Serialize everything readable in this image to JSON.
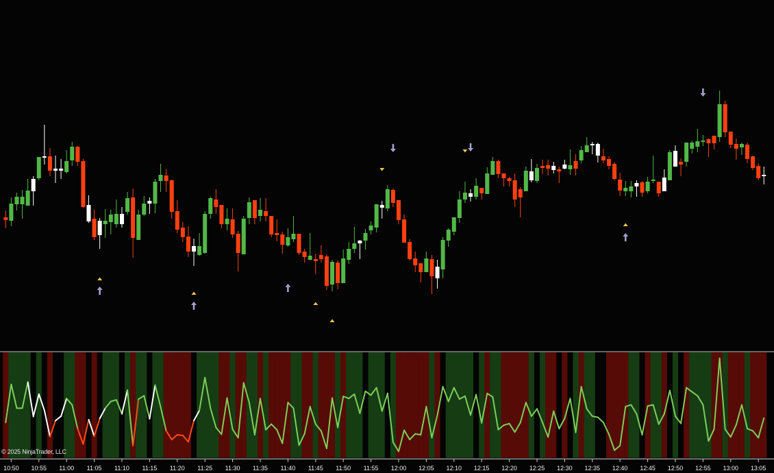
{
  "copyright": "© 2025 NinjaTrader, LLC",
  "colors": {
    "background": "#040404",
    "candle_up": "#52b848",
    "candle_down": "#ff4010",
    "candle_neutral": "#ffffff",
    "band_green": "#163c14",
    "band_red": "#560b06",
    "band_black": "#040404",
    "line_green": "#7ccf5a",
    "line_red": "#ff4a1a",
    "line_white": "#ffffff",
    "signal_triangle": "#f0c050",
    "signal_arrow": "#a0a0cc",
    "axis": "#d0d0d0"
  },
  "chart_data": [
    {
      "type": "candlestick",
      "title": "",
      "price_axis_labels": "none shown",
      "x_tick_labels": [
        "10:50",
        "10:55",
        "11:00",
        "11:05",
        "11:10",
        "11:15",
        "11:20",
        "11:25",
        "11:30",
        "11:35",
        "11:40",
        "11:45",
        "11:50",
        "11:55",
        "12:00",
        "12:05",
        "12:10",
        "12:15",
        "12:20",
        "12:25",
        "12:30",
        "12:35",
        "12:40",
        "12:45",
        "12:50",
        "12:55",
        "13:00",
        "13:05"
      ],
      "candle_fields": [
        "open",
        "high",
        "low",
        "close",
        "color"
      ],
      "candles": [
        [
          133,
          143,
          117,
          129,
          "r"
        ],
        [
          128,
          162,
          120,
          153,
          "g"
        ],
        [
          152,
          169,
          143,
          163,
          "g"
        ],
        [
          152,
          173,
          131,
          163,
          "g"
        ],
        [
          150,
          189,
          150,
          172,
          "g"
        ],
        [
          171,
          193,
          150,
          189,
          "w"
        ],
        [
          190,
          221,
          187,
          221,
          "g"
        ],
        [
          220,
          268,
          210,
          222,
          "w"
        ],
        [
          222,
          234,
          193,
          201,
          "r"
        ],
        [
          201,
          223,
          183,
          204,
          "w"
        ],
        [
          201,
          218,
          189,
          204,
          "w"
        ],
        [
          199,
          231,
          197,
          215,
          "g"
        ],
        [
          216,
          243,
          208,
          236,
          "g"
        ],
        [
          236,
          237,
          208,
          214,
          "r"
        ],
        [
          215,
          218,
          147,
          148,
          "r"
        ],
        [
          127,
          165,
          125,
          151,
          "w"
        ],
        [
          131,
          144,
          100,
          104,
          "r"
        ],
        [
          107,
          132,
          87,
          128,
          "w"
        ],
        [
          123,
          145,
          103,
          128,
          "g"
        ],
        [
          126,
          144,
          108,
          137,
          "g"
        ],
        [
          123,
          159,
          118,
          138,
          "g"
        ],
        [
          123,
          148,
          118,
          138,
          "w"
        ],
        [
          141,
          170,
          137,
          161,
          "g"
        ],
        [
          162,
          175,
          74,
          103,
          "r"
        ],
        [
          100,
          144,
          100,
          137,
          "g"
        ],
        [
          137,
          164,
          135,
          153,
          "g"
        ],
        [
          153,
          162,
          138,
          157,
          "w"
        ],
        [
          153,
          189,
          139,
          185,
          "g"
        ],
        [
          186,
          211,
          170,
          195,
          "g"
        ],
        [
          194,
          203,
          170,
          186,
          "r"
        ],
        [
          187,
          188,
          131,
          141,
          "r"
        ],
        [
          142,
          158,
          110,
          115,
          "r"
        ],
        [
          118,
          126,
          97,
          104,
          "r"
        ],
        [
          105,
          120,
          75,
          83,
          "r"
        ],
        [
          83,
          102,
          62,
          91,
          "w"
        ],
        [
          78,
          110,
          77,
          91,
          "g"
        ],
        [
          81,
          142,
          80,
          138,
          "g"
        ],
        [
          138,
          163,
          131,
          161,
          "g"
        ],
        [
          159,
          174,
          138,
          148,
          "r"
        ],
        [
          151,
          151,
          117,
          123,
          "r"
        ],
        [
          123,
          146,
          114,
          131,
          "g"
        ],
        [
          130,
          146,
          103,
          108,
          "r"
        ],
        [
          109,
          113,
          54,
          81,
          "r"
        ],
        [
          79,
          135,
          79,
          131,
          "g"
        ],
        [
          132,
          162,
          123,
          155,
          "g"
        ],
        [
          158,
          158,
          123,
          132,
          "r"
        ],
        [
          135,
          161,
          127,
          144,
          "g"
        ],
        [
          142,
          161,
          127,
          135,
          "r"
        ],
        [
          135,
          135,
          104,
          108,
          "r"
        ],
        [
          110,
          130,
          98,
          107,
          "r"
        ],
        [
          108,
          112,
          80,
          93,
          "r"
        ],
        [
          92,
          117,
          90,
          104,
          "g"
        ],
        [
          101,
          135,
          97,
          109,
          "g"
        ],
        [
          109,
          109,
          78,
          81,
          "r"
        ],
        [
          83,
          87,
          67,
          75,
          "r"
        ],
        [
          71,
          110,
          70,
          77,
          "g"
        ],
        [
          72,
          80,
          50,
          69,
          "r"
        ],
        [
          78,
          92,
          67,
          72,
          "r"
        ],
        [
          76,
          79,
          27,
          33,
          "r"
        ],
        [
          35,
          71,
          25,
          68,
          "g"
        ],
        [
          67,
          70,
          28,
          37,
          "r"
        ],
        [
          37,
          86,
          37,
          73,
          "g"
        ],
        [
          71,
          97,
          65,
          87,
          "g"
        ],
        [
          87,
          119,
          81,
          95,
          "g"
        ],
        [
          95,
          100,
          72,
          99,
          "w"
        ],
        [
          99,
          116,
          86,
          110,
          "g"
        ],
        [
          114,
          127,
          108,
          121,
          "g"
        ],
        [
          118,
          152,
          111,
          152,
          "g"
        ],
        [
          147,
          157,
          131,
          151,
          "w"
        ],
        [
          146,
          180,
          142,
          174,
          "g"
        ],
        [
          173,
          175,
          148,
          154,
          "r"
        ],
        [
          158,
          158,
          123,
          129,
          "r"
        ],
        [
          130,
          137,
          96,
          96,
          "r"
        ],
        [
          97,
          101,
          70,
          72,
          "r"
        ],
        [
          73,
          83,
          53,
          63,
          "r"
        ],
        [
          66,
          66,
          38,
          53,
          "r"
        ],
        [
          53,
          83,
          53,
          73,
          "g"
        ],
        [
          72,
          78,
          21,
          47,
          "r"
        ],
        [
          44,
          71,
          29,
          61,
          "w"
        ],
        [
          57,
          104,
          44,
          100,
          "g"
        ],
        [
          99,
          117,
          90,
          115,
          "g"
        ],
        [
          112,
          133,
          107,
          133,
          "g"
        ],
        [
          132,
          171,
          125,
          159,
          "g"
        ],
        [
          159,
          185,
          154,
          169,
          "g"
        ],
        [
          163,
          174,
          156,
          168,
          "w"
        ],
        [
          163,
          190,
          159,
          179,
          "g"
        ],
        [
          176,
          176,
          159,
          168,
          "r"
        ],
        [
          167,
          206,
          167,
          197,
          "g"
        ],
        [
          195,
          221,
          195,
          215,
          "g"
        ],
        [
          215,
          217,
          190,
          196,
          "r"
        ],
        [
          197,
          197,
          178,
          190,
          "r"
        ],
        [
          190,
          192,
          178,
          186,
          "r"
        ],
        [
          187,
          197,
          148,
          159,
          "r"
        ],
        [
          174,
          177,
          133,
          162,
          "r"
        ],
        [
          171,
          207,
          171,
          201,
          "g"
        ],
        [
          187,
          218,
          184,
          200,
          "w"
        ],
        [
          186,
          211,
          183,
          205,
          "g"
        ],
        [
          208,
          217,
          196,
          205,
          "r"
        ],
        [
          209,
          217,
          194,
          204,
          "r"
        ],
        [
          202,
          214,
          197,
          208,
          "w"
        ],
        [
          203,
          207,
          183,
          200,
          "r"
        ],
        [
          204,
          217,
          203,
          210,
          "w"
        ],
        [
          203,
          232,
          195,
          209,
          "g"
        ],
        [
          215,
          225,
          194,
          204,
          "r"
        ],
        [
          216,
          237,
          212,
          231,
          "g"
        ],
        [
          228,
          250,
          228,
          238,
          "g"
        ],
        [
          238,
          243,
          225,
          240,
          "w"
        ],
        [
          223,
          242,
          213,
          240,
          "w"
        ],
        [
          222,
          233,
          212,
          216,
          "r"
        ],
        [
          218,
          222,
          203,
          208,
          "r"
        ],
        [
          211,
          213,
          187,
          189,
          "r"
        ],
        [
          188,
          198,
          164,
          172,
          "r"
        ],
        [
          171,
          186,
          164,
          176,
          "g"
        ],
        [
          171,
          186,
          162,
          178,
          "g"
        ],
        [
          178,
          187,
          163,
          183,
          "w"
        ],
        [
          184,
          186,
          163,
          169,
          "r"
        ],
        [
          171,
          192,
          168,
          185,
          "g"
        ],
        [
          186,
          223,
          183,
          188,
          "g"
        ],
        [
          185,
          185,
          163,
          168,
          "r"
        ],
        [
          171,
          203,
          171,
          191,
          "w"
        ],
        [
          187,
          231,
          187,
          228,
          "g"
        ],
        [
          207,
          238,
          207,
          230,
          "w"
        ],
        [
          214,
          219,
          193,
          210,
          "r"
        ],
        [
          214,
          242,
          207,
          242,
          "g"
        ],
        [
          233,
          245,
          226,
          242,
          "g"
        ],
        [
          236,
          262,
          228,
          244,
          "g"
        ],
        [
          243,
          253,
          237,
          245,
          "g"
        ],
        [
          247,
          248,
          221,
          241,
          "r"
        ],
        [
          252,
          252,
          232,
          241,
          "r"
        ],
        [
          250,
          318,
          243,
          298,
          "g"
        ],
        [
          298,
          303,
          250,
          257,
          "r"
        ],
        [
          258,
          258,
          234,
          239,
          "r"
        ],
        [
          240,
          248,
          217,
          233,
          "r"
        ],
        [
          235,
          242,
          224,
          240,
          "g"
        ],
        [
          239,
          242,
          212,
          218,
          "r"
        ],
        [
          222,
          223,
          202,
          205,
          "r"
        ],
        [
          208,
          212,
          187,
          190,
          "r"
        ],
        [
          193,
          207,
          181,
          195,
          "w"
        ]
      ],
      "signals": {
        "triangle_up": [
          {
            "time": "11:06",
            "price": 43
          },
          {
            "time": "11:23",
            "price": 22
          },
          {
            "time": "11:45",
            "price": 7
          },
          {
            "time": "11:48",
            "price": -18
          },
          {
            "time": "12:41",
            "price": 122
          }
        ],
        "triangle_down": [
          {
            "time": "11:57",
            "price": 203
          },
          {
            "time": "12:12",
            "price": 230
          }
        ],
        "arrow_up": [
          {
            "time": "11:06",
            "price": 26
          },
          {
            "time": "11:23",
            "price": 4
          },
          {
            "time": "11:40",
            "price": 30
          },
          {
            "time": "12:41",
            "price": 104
          }
        ],
        "arrow_down": [
          {
            "time": "11:59",
            "price": 234
          },
          {
            "time": "12:13",
            "price": 235
          },
          {
            "time": "12:55",
            "price": 315
          }
        ]
      }
    },
    {
      "type": "line",
      "panel": "oscillator",
      "ylim": [
        0,
        100
      ],
      "values": [
        33.5,
        69.7,
        47.1,
        47.1,
        71.8,
        39.2,
        60.4,
        45,
        20.2,
        35.3,
        39.5,
        56.3,
        50.3,
        27.7,
        13.1,
        36.3,
        20.6,
        37.4,
        47.1,
        53.5,
        55,
        41.7,
        64.3,
        11.6,
        55.7,
        58.9,
        37,
        69,
        48.2,
        25.6,
        17.4,
        21.9,
        21.3,
        15.3,
        35.3,
        45,
        76.1,
        47.1,
        28.8,
        22.4,
        56.8,
        27.1,
        19.1,
        71.2,
        52.5,
        21.9,
        56.3,
        26.7,
        32,
        26.7,
        13.8,
        52.5,
        47.1,
        12,
        22.8,
        48.6,
        32,
        25.6,
        9,
        56.8,
        28.8,
        58.3,
        56.3,
        60.4,
        42.2,
        63.2,
        59.4,
        66.5,
        44.3,
        61.1,
        14.8,
        6.2,
        26.2,
        17.4,
        22.8,
        21.9,
        48.6,
        19.1,
        40.6,
        67.5,
        53.5,
        66.5,
        55.7,
        58.5,
        40.6,
        60,
        33.1,
        61.1,
        57.8,
        26.7,
        31,
        32.5,
        24.5,
        33.5,
        52.5,
        39.5,
        46.5,
        33.5,
        19.8,
        44.3,
        27.7,
        37.4,
        56.3,
        24.1,
        67.5,
        46.5,
        39.5,
        38.5,
        33.5,
        22.4,
        7.3,
        11.6,
        48.6,
        50.3,
        41.7,
        21.9,
        49.2,
        50.3,
        32,
        41.7,
        63.9,
        39.5,
        32.7,
        66.5,
        62.6,
        58.9,
        50.3,
        15.9,
        27.3,
        94.4,
        27.1,
        19.8,
        31.4,
        50.3,
        27.7,
        25.6,
        19.1,
        37.8
      ],
      "line_colors": "gggggwwwwrwwggrrwrwgggwgrggwggrrrrrwg",
      "band_colors": "rggggkgkrkkggrrkrkgggkgrggkggrrrrrkggggrrgrrggrgrrrrggrrgrrrgrgggkgggkgrrrrrrgrkgggggkgrggrrrrrgkgrrkrkgrggkkrrrrggkrggrkgkrggggrrgrrrgrrrk"
    }
  ]
}
